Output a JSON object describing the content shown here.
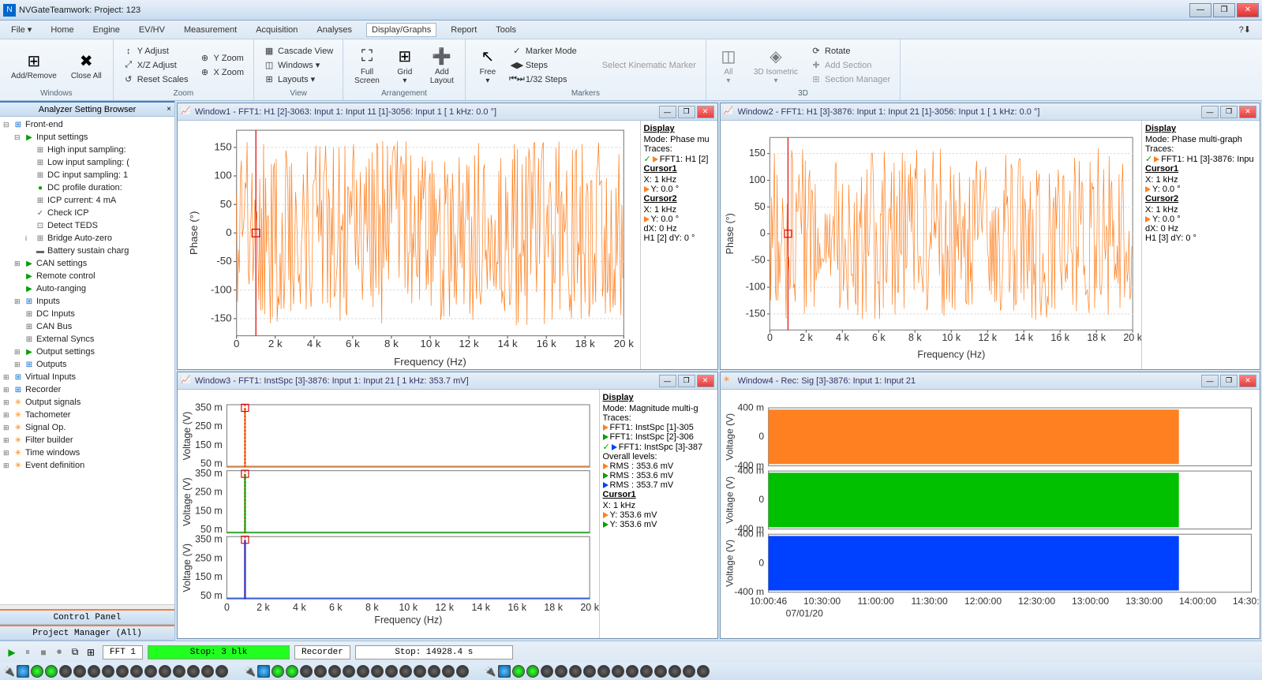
{
  "app": {
    "title": "NVGateTeamwork: Project: 123",
    "icon_letter": "N"
  },
  "menubar": {
    "items": [
      "File ▾",
      "Home",
      "Engine",
      "EV/HV",
      "Measurement",
      "Acquisition",
      "Analyses",
      "Display/Graphs",
      "Report",
      "Tools"
    ],
    "active_index": 7,
    "help": "?⬇"
  },
  "ribbon": {
    "groups": [
      {
        "label": "Windows",
        "big": [
          {
            "icon": "⊞",
            "label": "Add/Remove"
          },
          {
            "icon": "✖",
            "label": "Close All"
          }
        ]
      },
      {
        "label": "Zoom",
        "cols": [
          [
            {
              "icon": "↕",
              "text": "Y Adjust"
            },
            {
              "icon": "⤢",
              "text": "X/Z Adjust"
            },
            {
              "icon": "↺",
              "text": "Reset Scales"
            }
          ],
          [
            {
              "icon": "⊕",
              "text": "Y Zoom"
            },
            {
              "icon": "⊕",
              "text": "X Zoom"
            }
          ]
        ]
      },
      {
        "label": "View",
        "cols": [
          [
            {
              "icon": "▦",
              "text": "Cascade View"
            },
            {
              "icon": "◫",
              "text": "Windows ▾"
            },
            {
              "icon": "⊞",
              "text": "Layouts ▾"
            }
          ]
        ]
      },
      {
        "label": "Arrangement",
        "big": [
          {
            "icon": "⛶",
            "label": "Full\nScreen"
          },
          {
            "icon": "⊞",
            "label": "Grid\n▾"
          },
          {
            "icon": "➕",
            "label": "Add\nLayout"
          }
        ]
      },
      {
        "label": "Markers",
        "mixed": {
          "big": [
            {
              "icon": "↖",
              "label": "Free\n▾"
            }
          ],
          "cols": [
            [
              {
                "icon": "✓",
                "text": "Marker Mode"
              },
              {
                "icon": "◀▶",
                "text": "Steps"
              },
              {
                "icon": "⏮⏭",
                "text": "1/32 Steps"
              }
            ],
            [
              {
                "icon": "",
                "text": "Select Kinematic Marker",
                "disabled": true
              }
            ]
          ]
        }
      },
      {
        "label": "3D",
        "big": [
          {
            "icon": "◫",
            "label": "All\n▾",
            "disabled": true
          },
          {
            "icon": "◈",
            "label": "3D Isometric\n▾",
            "disabled": true
          }
        ],
        "cols": [
          [
            {
              "icon": "⟳",
              "text": "Rotate"
            },
            {
              "icon": "✚",
              "text": "Add Section",
              "disabled": true
            },
            {
              "icon": "⊞",
              "text": "Section Manager",
              "disabled": true
            }
          ]
        ]
      }
    ]
  },
  "sidebar": {
    "header": "Analyzer Setting Browser",
    "bottom_headers": [
      "Control Panel",
      "Project Manager (All)"
    ],
    "tree": [
      {
        "d": 0,
        "toggle": "⊟",
        "icon": "⊞",
        "label": "Front-end",
        "color": "#0066cc"
      },
      {
        "d": 1,
        "toggle": "⊟",
        "icon": "▶",
        "label": "Input settings",
        "color": "#00a000"
      },
      {
        "d": 2,
        "toggle": "",
        "icon": "⊞",
        "label": "High input sampling:"
      },
      {
        "d": 2,
        "toggle": "",
        "icon": "⊞",
        "label": "Low input sampling: ("
      },
      {
        "d": 2,
        "toggle": "",
        "icon": "⊞",
        "label": "DC input sampling: 1"
      },
      {
        "d": 2,
        "toggle": "",
        "icon": "●",
        "label": "DC profile duration:",
        "color": "#00a000"
      },
      {
        "d": 2,
        "toggle": "",
        "icon": "⊞",
        "label": "ICP current: 4 mA"
      },
      {
        "d": 2,
        "toggle": "",
        "icon": "✓",
        "label": "Check ICP"
      },
      {
        "d": 2,
        "toggle": "",
        "icon": "⊡",
        "label": "Detect TEDS"
      },
      {
        "d": 2,
        "toggle": "i",
        "icon": "⊞",
        "label": "Bridge Auto-zero"
      },
      {
        "d": 2,
        "toggle": "",
        "icon": "▬",
        "label": "Battery sustain charg"
      },
      {
        "d": 1,
        "toggle": "⊞",
        "icon": "▶",
        "label": "CAN settings",
        "color": "#00a000"
      },
      {
        "d": 1,
        "toggle": "",
        "icon": "▶",
        "label": "Remote control",
        "color": "#00a000"
      },
      {
        "d": 1,
        "toggle": "",
        "icon": "▶",
        "label": "Auto-ranging",
        "color": "#00a000"
      },
      {
        "d": 1,
        "toggle": "⊞",
        "icon": "⊞",
        "label": "Inputs",
        "color": "#0066cc"
      },
      {
        "d": 1,
        "toggle": "",
        "icon": "⊞",
        "label": "DC Inputs"
      },
      {
        "d": 1,
        "toggle": "",
        "icon": "⊞",
        "label": "CAN Bus"
      },
      {
        "d": 1,
        "toggle": "",
        "icon": "⊞",
        "label": "External Syncs"
      },
      {
        "d": 1,
        "toggle": "⊞",
        "icon": "▶",
        "label": "Output settings",
        "color": "#00a000"
      },
      {
        "d": 1,
        "toggle": "⊞",
        "icon": "⊞",
        "label": "Outputs",
        "color": "#0066cc"
      },
      {
        "d": 0,
        "toggle": "⊞",
        "icon": "⊞",
        "label": "Virtual Inputs",
        "color": "#0066cc"
      },
      {
        "d": 0,
        "toggle": "⊞",
        "icon": "⊞",
        "label": "Recorder",
        "color": "#0066cc"
      },
      {
        "d": 0,
        "toggle": "⊞",
        "icon": "✳",
        "label": "Output signals",
        "color": "#ff8000"
      },
      {
        "d": 0,
        "toggle": "⊞",
        "icon": "✳",
        "label": "Tachometer",
        "color": "#ff8000"
      },
      {
        "d": 0,
        "toggle": "⊞",
        "icon": "✳",
        "label": "Signal Op.",
        "color": "#ff8000"
      },
      {
        "d": 0,
        "toggle": "⊞",
        "icon": "✳",
        "label": "Filter builder",
        "color": "#ff8000"
      },
      {
        "d": 0,
        "toggle": "⊞",
        "icon": "✳",
        "label": "Time windows",
        "color": "#ff8000"
      },
      {
        "d": 0,
        "toggle": "⊞",
        "icon": "✳",
        "label": "Event definition",
        "color": "#ff8000"
      }
    ]
  },
  "windows": {
    "w1": {
      "title": "Window1 - FFT1: H1 [2]-3063: Input 1: Input 11 [1]-3056: Input 1 [ 1 kHz:  0.0 °]",
      "ylabel": "Phase (°)",
      "xlabel": "Frequency (Hz)",
      "color": "#ff8020",
      "xlim": [
        0,
        20000
      ],
      "ylim": [
        -180,
        180
      ],
      "xticks": [
        "0",
        "2 k",
        "4 k",
        "6 k",
        "8 k",
        "10 k",
        "12 k",
        "14 k",
        "16 k",
        "18 k",
        "20 k"
      ],
      "yticks": [
        "-150",
        "-100",
        "-50",
        "0",
        "50",
        "100",
        "150"
      ],
      "display": {
        "title": "Display",
        "mode": "Mode: Phase mu",
        "traces_label": "Traces:",
        "trace": "FFT1: H1 [2]",
        "cursor1": "Cursor1",
        "c1x": "X: 1 kHz",
        "c1y": "Y: 0.0 °",
        "cursor2": "Cursor2",
        "c2x": "X: 1 kHz",
        "c2y": "Y: 0.0 °",
        "dx": "dX: 0 Hz",
        "dy": "H1 [2] dY: 0 °"
      }
    },
    "w2": {
      "title": "Window2 - FFT1: H1 [3]-3876: Input 1: Input 21 [1]-3056: Input 1 [ 1 kHz:  0.0 °]",
      "ylabel": "Phase (°)",
      "xlabel": "Frequency (Hz)",
      "color": "#ff8020",
      "xlim": [
        0,
        20000
      ],
      "ylim": [
        -180,
        180
      ],
      "xticks": [
        "0",
        "2 k",
        "4 k",
        "6 k",
        "8 k",
        "10 k",
        "12 k",
        "14 k",
        "16 k",
        "18 k",
        "20 k"
      ],
      "yticks": [
        "-150",
        "-100",
        "-50",
        "0",
        "50",
        "100",
        "150"
      ],
      "display": {
        "title": "Display",
        "mode": "Mode: Phase multi-graph",
        "traces_label": "Traces:",
        "trace": "FFT1: H1 [3]-3876: Inpu",
        "cursor1": "Cursor1",
        "c1x": "X: 1 kHz",
        "c1y": "Y: 0.0 °",
        "cursor2": "Cursor2",
        "c2x": "X: 1 kHz",
        "c2y": "Y: 0.0 °",
        "dx": "dX: 0 Hz",
        "dy": "H1 [3] dY: 0 °"
      }
    },
    "w3": {
      "title": "Window3 - FFT1: InstSpc [3]-3876: Input 1: Input 21 [ 1 kHz:  353.7 mV]",
      "ylabel": "Voltage (V)",
      "xlabel": "Frequency (Hz)",
      "xlim": [
        0,
        20000
      ],
      "xticks": [
        "0",
        "2 k",
        "4 k",
        "6 k",
        "8 k",
        "10 k",
        "12 k",
        "14 k",
        "16 k",
        "18 k",
        "20 k"
      ],
      "panel_yticks": [
        "350 m",
        "250 m",
        "150 m",
        "50 m"
      ],
      "display": {
        "title": "Display",
        "mode": "Mode: Magnitude multi-g",
        "traces_label": "Traces:",
        "t1": "FFT1: InstSpc [1]-305",
        "t2": "FFT1: InstSpc [2]-306",
        "t3": "FFT1: InstSpc [3]-387",
        "overall": "Overall levels:",
        "r1": "RMS : 353.6 mV",
        "r2": "RMS : 353.6 mV",
        "r3": "RMS : 353.7 mV",
        "cursor1": "Cursor1",
        "c1x": "X: 1 kHz",
        "y1": "Y: 353.6 mV",
        "y2": "Y: 353.6 mV"
      }
    },
    "w4": {
      "title": "Window4 - Rec: Sig [3]-3876: Input 1: Input 21",
      "ylabel": "Voltage (V)",
      "xticks": [
        "10:00:46",
        "10:30:00",
        "11:00:00",
        "11:30:00",
        "12:00:00",
        "12:30:00",
        "13:00:00",
        "13:30:00",
        "14:00:00",
        "14:30:00"
      ],
      "date": "07/01/20",
      "yticks": [
        "400 m",
        "0",
        "-400 m"
      ],
      "colors": [
        "#ff8020",
        "#00c000",
        "#0040ff"
      ]
    }
  },
  "status": {
    "fft_label": "FFT 1",
    "fft_status": "Stop: 3 blk",
    "rec_label": "Recorder",
    "rec_status": "Stop: 14928.4 s"
  }
}
